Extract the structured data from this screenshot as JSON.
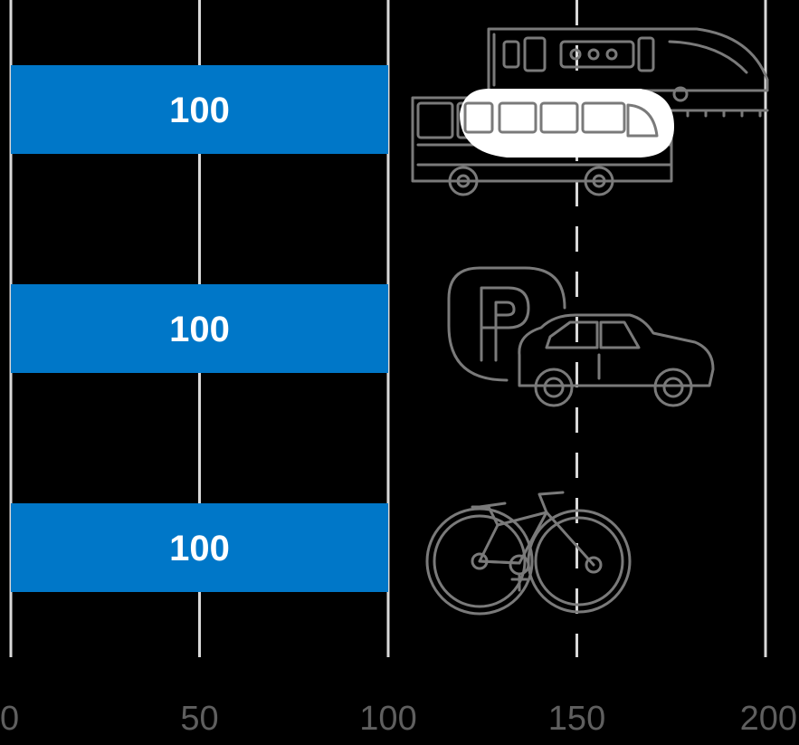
{
  "chart_data": {
    "type": "bar",
    "orientation": "horizontal",
    "categories": [
      "",
      "",
      ""
    ],
    "values": [
      100,
      100,
      100
    ],
    "data_labels": [
      "100",
      "100",
      "100"
    ],
    "xlim": [
      0,
      200
    ],
    "x_ticks": [
      "0",
      "50",
      "100",
      "150",
      "200"
    ],
    "title": "",
    "xlabel": "",
    "ylabel": "",
    "grid": true,
    "grid_dashed_at": 150,
    "bar_color": "#0077C8",
    "background": "#000000",
    "gridline_color": "#D9D9D9",
    "tick_label_color": "#5F5F5F",
    "icons": [
      "train-bus-icon",
      "parking-car-icon",
      "bicycle-icon"
    ]
  }
}
